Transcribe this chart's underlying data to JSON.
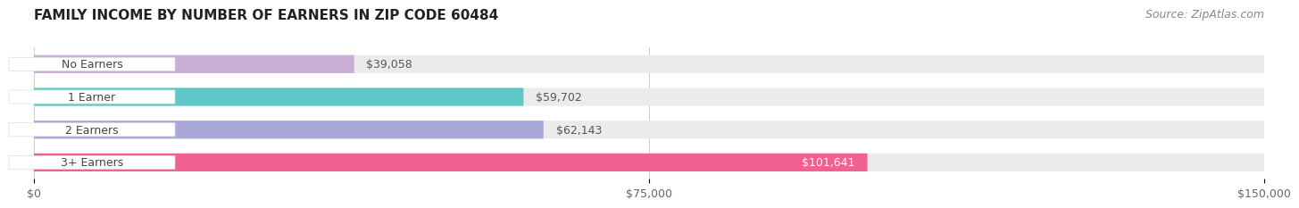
{
  "title": "FAMILY INCOME BY NUMBER OF EARNERS IN ZIP CODE 60484",
  "source": "Source: ZipAtlas.com",
  "categories": [
    "No Earners",
    "1 Earner",
    "2 Earners",
    "3+ Earners"
  ],
  "values": [
    39058,
    59702,
    62143,
    101641
  ],
  "labels": [
    "$39,058",
    "$59,702",
    "$62,143",
    "$101,641"
  ],
  "bar_colors": [
    "#c9aed6",
    "#5ec8c8",
    "#a9a9d9",
    "#f06090"
  ],
  "bar_bg_color": "#f0f0f0",
  "label_colors": [
    "#555555",
    "#555555",
    "#555555",
    "#ffffff"
  ],
  "xmax": 150000,
  "xticks": [
    0,
    75000,
    150000
  ],
  "xticklabels": [
    "$0",
    "$75,000",
    "$150,000"
  ],
  "title_fontsize": 11,
  "source_fontsize": 9,
  "bg_color": "#ffffff",
  "bar_height": 0.55,
  "label_fontsize": 9,
  "category_fontsize": 9
}
